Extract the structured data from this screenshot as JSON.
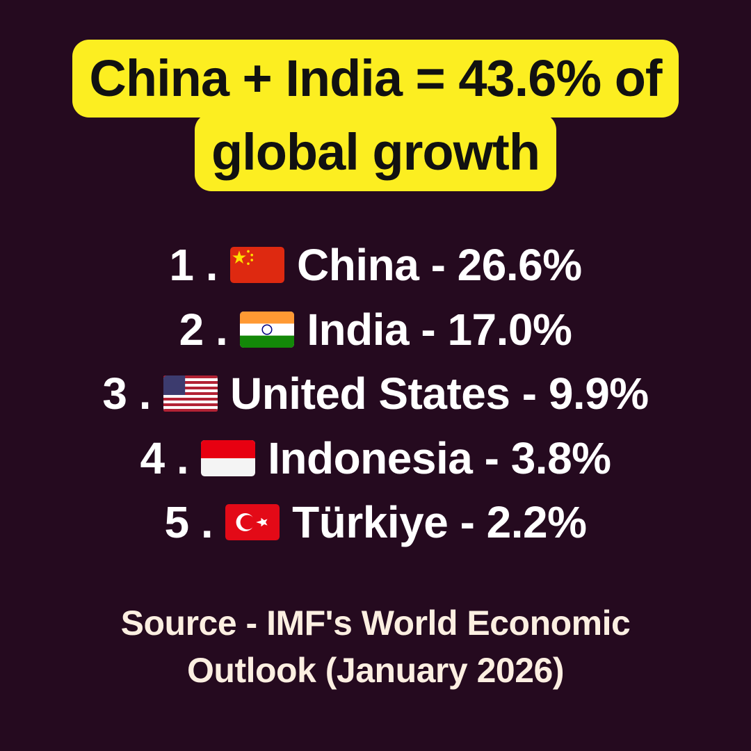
{
  "header": {
    "title_lines": [
      "China + India = 43.6% of",
      "global growth"
    ]
  },
  "list": [
    {
      "rank": "1 .",
      "label": "China - 26.6%"
    },
    {
      "rank": "2 .",
      "label": "India - 17.0%"
    },
    {
      "rank": "3 .",
      "label": "United States - 9.9%"
    },
    {
      "rank": "4 .",
      "label": "Indonesia - 3.8%"
    },
    {
      "rank": "5 .",
      "label": "Türkiye - 2.2%"
    }
  ],
  "footer": {
    "source_lines": [
      "Source - IMF's World Economic",
      "Outlook (January 2026)"
    ]
  }
}
